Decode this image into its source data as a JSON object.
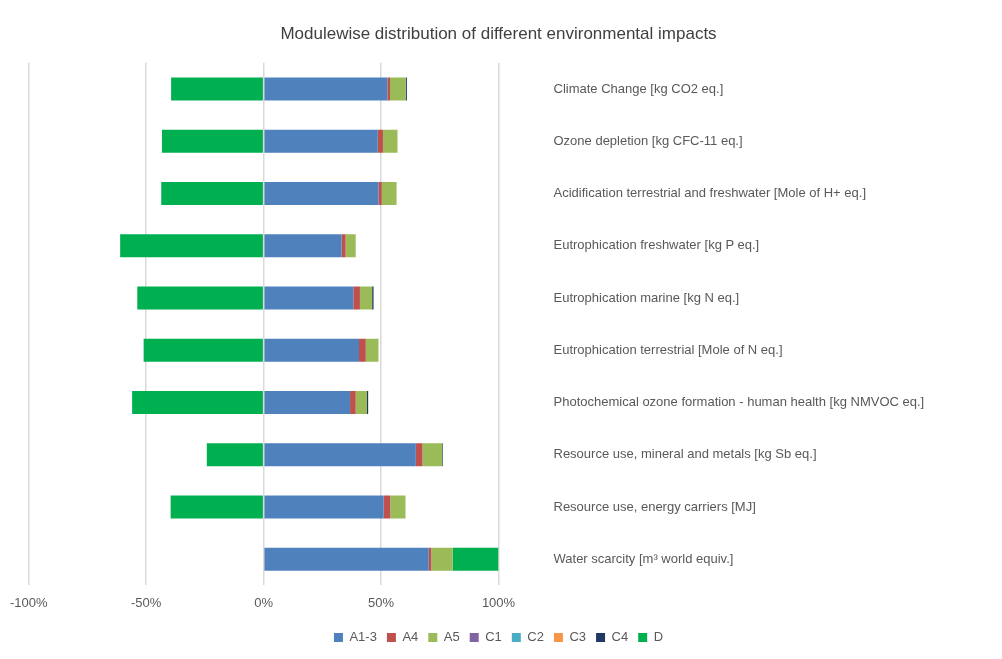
{
  "chart_data": {
    "type": "bar",
    "orientation": "horizontal",
    "stacked": true,
    "title": "Modulewise distribution of different environmental impacts",
    "categories": [
      "Climate Change [kg CO2 eq.]",
      "Ozone depletion [kg CFC-11 eq.]",
      "Acidification terrestrial and freshwater [Mole of H+ eq.]",
      "Eutrophication freshwater [kg P eq.]",
      "Eutrophication marine [kg N eq.]",
      "Eutrophication terrestrial [Mole of N eq.]",
      "Photochemical ozone formation - human health [kg NMVOC eq.]",
      "Resource use, mineral and metals [kg Sb eq.]",
      "Resource use, energy carriers [MJ]",
      "Water scarcity [m³ world equiv.]"
    ],
    "series": [
      {
        "name": "A1-3",
        "color": "#4f81bd",
        "values": [
          52.7,
          48.6,
          48.9,
          33.2,
          38.2,
          40.6,
          36.8,
          64.8,
          51.1,
          70.3
        ]
      },
      {
        "name": "A4",
        "color": "#c0504d",
        "values": [
          1.1,
          2.2,
          1.4,
          1.7,
          2.8,
          2.9,
          2.4,
          2.8,
          2.8,
          1.1
        ]
      },
      {
        "name": "A5",
        "color": "#9bbb59",
        "values": [
          6.7,
          6.2,
          6.3,
          4.3,
          5.2,
          5.4,
          4.8,
          8.4,
          6.5,
          9.1
        ]
      },
      {
        "name": "C1",
        "color": "#8064a2",
        "values": [
          0,
          0,
          0,
          0,
          0,
          0,
          0,
          0,
          0,
          0
        ]
      },
      {
        "name": "C2",
        "color": "#4bacc6",
        "values": [
          0,
          0,
          0,
          0,
          0,
          0,
          0,
          0,
          0,
          0
        ]
      },
      {
        "name": "C3",
        "color": "#f79646",
        "values": [
          0,
          0,
          0,
          0,
          0,
          0,
          0,
          0,
          0,
          0
        ]
      },
      {
        "name": "C4",
        "color": "#1f3864",
        "values": [
          0.5,
          null,
          null,
          null,
          0.6,
          null,
          0.5,
          0.3,
          null,
          0
        ]
      },
      {
        "name": "D",
        "color": "#00b050",
        "values": [
          -39.4,
          -43.3,
          -43.6,
          -61.1,
          -53.8,
          -51.1,
          -56.0,
          -24.2,
          -39.6,
          19.5
        ]
      }
    ],
    "xlim": [
      -100,
      100
    ],
    "xticks": [
      {
        "value": -100,
        "label": "-100%"
      },
      {
        "value": -50,
        "label": "-50%"
      },
      {
        "value": 0,
        "label": "0%"
      },
      {
        "value": 50,
        "label": "50%"
      },
      {
        "value": 100,
        "label": "100%"
      }
    ],
    "grid": "x",
    "legend": "bottom"
  }
}
